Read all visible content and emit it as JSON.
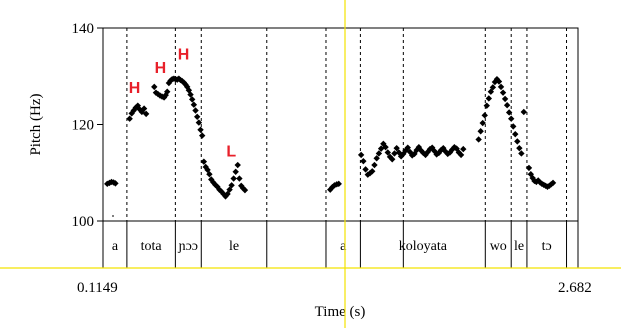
{
  "chart_data": {
    "type": "scatter",
    "title": "",
    "xlabel": "Time (s)",
    "ylabel": "Pitch (Hz)",
    "xlim": [
      0.1149,
      2.682
    ],
    "ylim": [
      100,
      140
    ],
    "x_tick_labels": [
      "0.1149",
      "2.682"
    ],
    "y_ticks": [
      100,
      120,
      140
    ],
    "y_tick_labels": [
      "100",
      "120",
      "140"
    ],
    "boundaries": [
      0.1149,
      0.244,
      0.506,
      0.646,
      1.0,
      1.32,
      1.506,
      1.738,
      2.181,
      2.321,
      2.406,
      2.62,
      2.682
    ],
    "segments": [
      {
        "label": "a",
        "start": 0.1149,
        "end": 0.244
      },
      {
        "label": "tota",
        "start": 0.244,
        "end": 0.506
      },
      {
        "label": "ɲɔɔ",
        "start": 0.506,
        "end": 0.646
      },
      {
        "label": "le",
        "start": 0.646,
        "end": 1.0
      },
      {
        "label": "",
        "start": 1.0,
        "end": 1.32
      },
      {
        "label": "a",
        "start": 1.32,
        "end": 1.506
      },
      {
        "label": "koloyata",
        "start": 1.506,
        "end": 2.181
      },
      {
        "label": "wo",
        "start": 2.181,
        "end": 2.321
      },
      {
        "label": "le",
        "start": 2.321,
        "end": 2.406
      },
      {
        "label": "tɔ",
        "start": 2.406,
        "end": 2.62
      },
      {
        "label": "",
        "start": 2.62,
        "end": 2.682
      }
    ],
    "tone_labels": [
      {
        "text": "H",
        "x": 0.285,
        "y": 126.5
      },
      {
        "text": "H",
        "x": 0.425,
        "y": 130.7
      },
      {
        "text": "H",
        "x": 0.55,
        "y": 133.5
      },
      {
        "text": "L",
        "x": 0.808,
        "y": 113.4
      }
    ],
    "series": [
      {
        "points": [
          [
            0.138,
            107.7
          ],
          [
            0.15,
            107.9
          ],
          [
            0.161,
            108.1
          ],
          [
            0.172,
            108.0
          ],
          [
            0.182,
            107.8
          ],
          [
            0.259,
            121.2
          ],
          [
            0.27,
            122.3
          ],
          [
            0.281,
            122.9
          ],
          [
            0.292,
            123.5
          ],
          [
            0.303,
            123.9
          ],
          [
            0.314,
            123.1
          ],
          [
            0.325,
            122.6
          ],
          [
            0.337,
            123.3
          ],
          [
            0.348,
            122.2
          ],
          [
            0.392,
            127.8
          ],
          [
            0.401,
            126.6
          ],
          [
            0.412,
            126.3
          ],
          [
            0.423,
            126.0
          ],
          [
            0.434,
            125.8
          ],
          [
            0.445,
            125.6
          ],
          [
            0.454,
            126.1
          ],
          [
            0.462,
            126.8
          ],
          [
            0.471,
            128.6
          ],
          [
            0.48,
            129.1
          ],
          [
            0.489,
            129.4
          ],
          [
            0.498,
            129.5
          ],
          [
            0.507,
            129.4
          ],
          [
            0.516,
            129.3
          ],
          [
            0.525,
            129.5
          ],
          [
            0.534,
            129.2
          ],
          [
            0.543,
            129.0
          ],
          [
            0.552,
            128.7
          ],
          [
            0.561,
            128.3
          ],
          [
            0.57,
            127.8
          ],
          [
            0.579,
            127.1
          ],
          [
            0.588,
            126.2
          ],
          [
            0.597,
            125.2
          ],
          [
            0.606,
            124.1
          ],
          [
            0.615,
            122.9
          ],
          [
            0.624,
            121.6
          ],
          [
            0.633,
            120.4
          ],
          [
            0.642,
            118.9
          ],
          [
            0.651,
            117.7
          ],
          [
            0.66,
            112.3
          ],
          [
            0.67,
            111.2
          ],
          [
            0.68,
            110.6
          ],
          [
            0.69,
            109.7
          ],
          [
            0.7,
            108.6
          ],
          [
            0.711,
            108.0
          ],
          [
            0.722,
            107.5
          ],
          [
            0.733,
            107.1
          ],
          [
            0.744,
            106.5
          ],
          [
            0.755,
            106.1
          ],
          [
            0.766,
            105.6
          ],
          [
            0.777,
            105.1
          ],
          [
            0.788,
            105.6
          ],
          [
            0.799,
            106.5
          ],
          [
            0.81,
            107.4
          ],
          [
            0.821,
            108.8
          ],
          [
            0.832,
            110.2
          ],
          [
            0.843,
            111.6
          ],
          [
            0.852,
            108.8
          ],
          [
            0.862,
            107.3
          ],
          [
            0.872,
            106.8
          ],
          [
            0.882,
            106.4
          ],
          [
            1.343,
            106.5
          ],
          [
            1.354,
            107.0
          ],
          [
            1.366,
            107.4
          ],
          [
            1.378,
            107.6
          ],
          [
            1.389,
            107.7
          ],
          [
            1.51,
            113.7
          ],
          [
            1.522,
            112.4
          ],
          [
            1.534,
            110.7
          ],
          [
            1.546,
            109.6
          ],
          [
            1.558,
            109.9
          ],
          [
            1.57,
            110.3
          ],
          [
            1.582,
            111.6
          ],
          [
            1.594,
            113.0
          ],
          [
            1.606,
            114.0
          ],
          [
            1.618,
            115.0
          ],
          [
            1.63,
            116.0
          ],
          [
            1.642,
            115.3
          ],
          [
            1.654,
            114.2
          ],
          [
            1.666,
            113.3
          ],
          [
            1.678,
            112.8
          ],
          [
            1.69,
            114.0
          ],
          [
            1.702,
            115.1
          ],
          [
            1.714,
            114.2
          ],
          [
            1.726,
            113.4
          ],
          [
            1.738,
            113.9
          ],
          [
            1.75,
            114.6
          ],
          [
            1.762,
            115.2
          ],
          [
            1.774,
            114.3
          ],
          [
            1.786,
            113.6
          ],
          [
            1.798,
            113.9
          ],
          [
            1.81,
            114.7
          ],
          [
            1.822,
            115.3
          ],
          [
            1.834,
            114.6
          ],
          [
            1.846,
            114.1
          ],
          [
            1.858,
            113.7
          ],
          [
            1.87,
            114.3
          ],
          [
            1.882,
            114.9
          ],
          [
            1.894,
            115.2
          ],
          [
            1.906,
            114.5
          ],
          [
            1.918,
            113.8
          ],
          [
            1.93,
            114.1
          ],
          [
            1.942,
            114.7
          ],
          [
            1.954,
            115.1
          ],
          [
            1.966,
            114.4
          ],
          [
            1.978,
            113.9
          ],
          [
            1.99,
            114.2
          ],
          [
            2.002,
            114.8
          ],
          [
            2.014,
            115.3
          ],
          [
            2.026,
            115.0
          ],
          [
            2.038,
            114.2
          ],
          [
            2.05,
            113.7
          ],
          [
            2.062,
            114.9
          ],
          [
            2.145,
            116.9
          ],
          [
            2.156,
            118.6
          ],
          [
            2.167,
            120.3
          ],
          [
            2.178,
            121.9
          ],
          [
            2.189,
            123.9
          ],
          [
            2.2,
            125.4
          ],
          [
            2.211,
            126.8
          ],
          [
            2.222,
            127.7
          ],
          [
            2.233,
            128.8
          ],
          [
            2.244,
            129.4
          ],
          [
            2.255,
            128.9
          ],
          [
            2.266,
            127.8
          ],
          [
            2.277,
            126.6
          ],
          [
            2.288,
            125.3
          ],
          [
            2.299,
            124.0
          ],
          [
            2.31,
            122.5
          ],
          [
            2.321,
            121.2
          ],
          [
            2.332,
            119.6
          ],
          [
            2.343,
            118.0
          ],
          [
            2.354,
            116.5
          ],
          [
            2.365,
            115.1
          ],
          [
            2.376,
            114.0
          ],
          [
            2.389,
            122.6
          ],
          [
            2.417,
            111.0
          ],
          [
            2.427,
            109.7
          ],
          [
            2.437,
            108.9
          ],
          [
            2.447,
            108.3
          ],
          [
            2.457,
            108.1
          ],
          [
            2.467,
            108.4
          ],
          [
            2.477,
            108.0
          ],
          [
            2.487,
            107.7
          ],
          [
            2.497,
            107.5
          ],
          [
            2.507,
            107.3
          ],
          [
            2.517,
            107.1
          ],
          [
            2.527,
            107.3
          ],
          [
            2.537,
            107.6
          ],
          [
            2.547,
            107.9
          ]
        ]
      }
    ]
  }
}
